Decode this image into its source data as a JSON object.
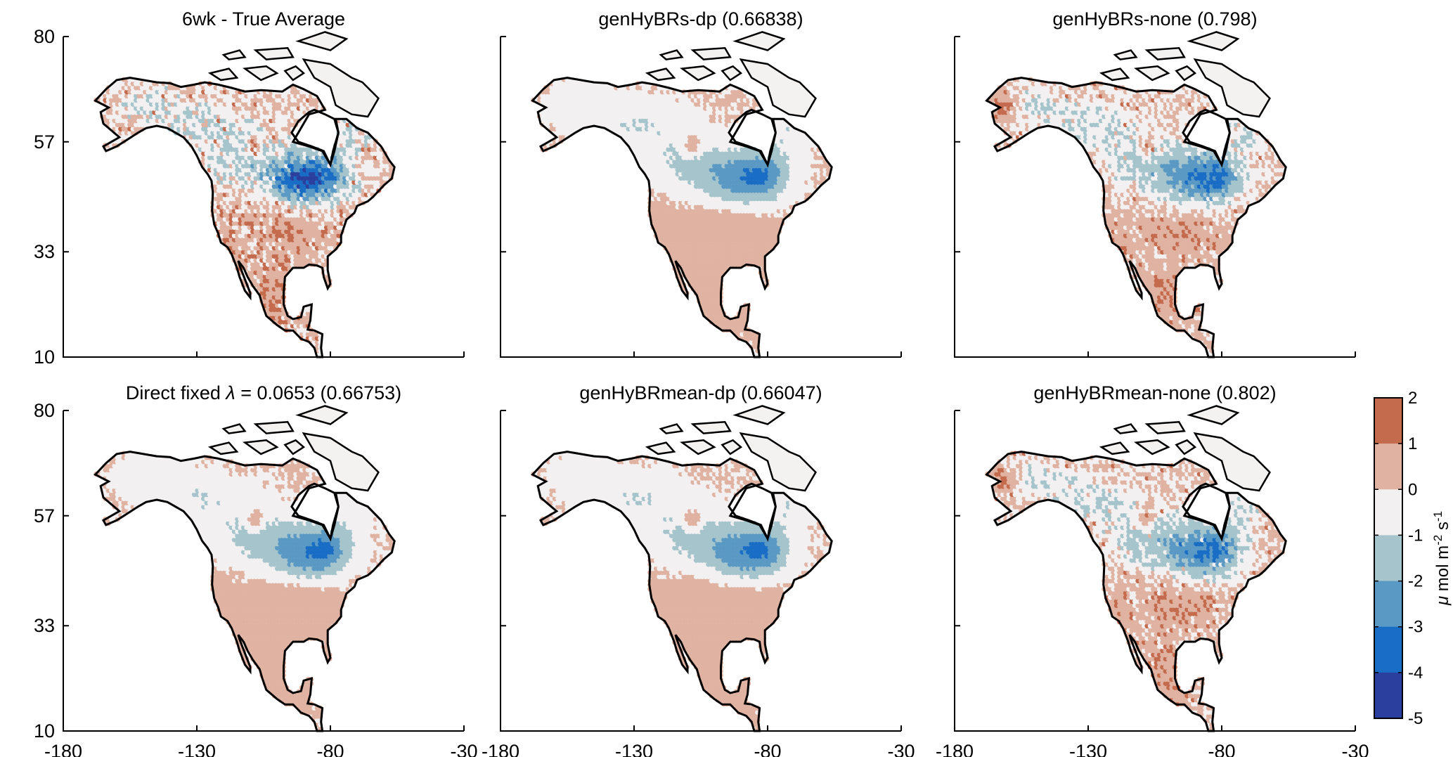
{
  "panels": [
    {
      "title": "6wk - True Average",
      "field": "true",
      "seed": 11
    },
    {
      "title": "genHyBRs-dp (0.66838)",
      "field": "smooth",
      "seed": 21
    },
    {
      "title": "genHyBRs-none (0.798)",
      "field": "noisy",
      "seed": 31
    },
    {
      "title_pre": "Direct fixed ",
      "title_symbol": "λ",
      "title_post": " = 0.0653 (0.66753)",
      "field": "smooth",
      "seed": 41
    },
    {
      "title": "genHyBRmean-dp (0.66047)",
      "field": "smooth",
      "seed": 51
    },
    {
      "title": "genHyBRmean-none (0.802)",
      "field": "noisy",
      "seed": 61
    }
  ],
  "axes": {
    "x_ticks": [
      "-180",
      "-130",
      "-80",
      "-30"
    ],
    "y_ticks": [
      "80",
      "57",
      "33",
      "10"
    ],
    "xlim": [
      -180,
      -30
    ],
    "ylim": [
      10,
      80
    ]
  },
  "colorbar": {
    "ticks": [
      "2",
      "1",
      "0",
      "-1",
      "-2",
      "-3",
      "-4",
      "-5"
    ],
    "label_mu": "μ",
    "label_text": " mol m",
    "label_sup1": "-2",
    "label_mid": " s",
    "label_sup2": "-1",
    "colors": [
      "#c56b4d",
      "#e0b2a2",
      "#f2f0f0",
      "#a5c4cc",
      "#5b99c5",
      "#1a6dc4",
      "#2b3f9e",
      "#111a4a"
    ]
  }
}
